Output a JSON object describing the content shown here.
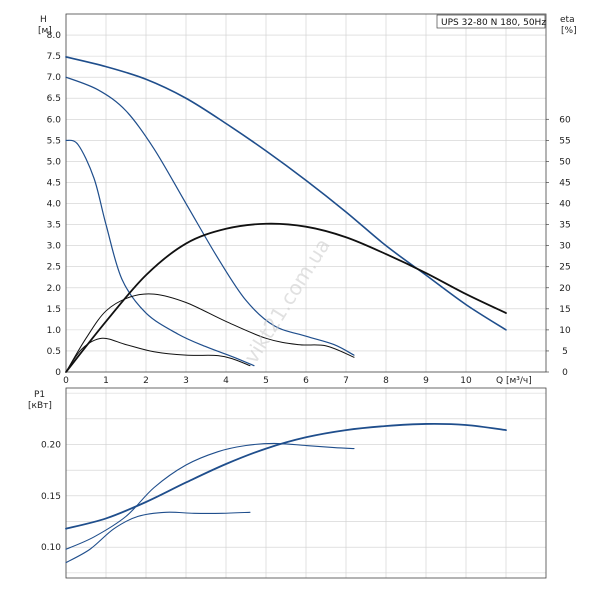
{
  "model_label": "UPS 32-80 N 180, 50Hz",
  "watermark": "vikt21.com.ua",
  "colors": {
    "blue": "#1f4e8c",
    "black": "#111111",
    "grid": "#cfcfcf",
    "frame": "#444444"
  },
  "chart_data": [
    {
      "type": "line",
      "id": "head-efficiency",
      "xlabel": "Q [м³/ч]",
      "ylabel_left": "H",
      "ylabel_left_unit": "[м]",
      "ylabel_right": "eta",
      "ylabel_right_unit": "[%]",
      "xlim": [
        0,
        12
      ],
      "ylim_left": [
        0,
        8.5
      ],
      "ylim_right": [
        0,
        85
      ],
      "grid": true,
      "x_ticks": [
        "0",
        "1",
        "2",
        "3",
        "4",
        "5",
        "6",
        "7",
        "8",
        "9",
        "10"
      ],
      "x_tick_values": [
        0,
        1,
        2,
        3,
        4,
        5,
        6,
        7,
        8,
        9,
        10
      ],
      "y_left_ticks": [
        "0",
        "0.5",
        "1.0",
        "1.5",
        "2.0",
        "2.5",
        "3.0",
        "3.5",
        "4.0",
        "4.5",
        "5.0",
        "5.5",
        "6.0",
        "6.5",
        "7.0",
        "7.5",
        "8.0"
      ],
      "y_left_tick_values": [
        0,
        0.5,
        1,
        1.5,
        2,
        2.5,
        3,
        3.5,
        4,
        4.5,
        5,
        5.5,
        6,
        6.5,
        7,
        7.5,
        8
      ],
      "y_right_ticks": [
        "0",
        "5",
        "10",
        "15",
        "20",
        "25",
        "30",
        "35",
        "40",
        "45",
        "50",
        "55",
        "60"
      ],
      "y_right_tick_values": [
        0,
        5,
        10,
        15,
        20,
        25,
        30,
        35,
        40,
        45,
        50,
        55,
        60
      ],
      "series": [
        {
          "kind": "head",
          "color": "blue",
          "width": 1.6,
          "points": [
            [
              0,
              7.48
            ],
            [
              1,
              7.25
            ],
            [
              2,
              6.95
            ],
            [
              3,
              6.5
            ],
            [
              4,
              5.9
            ],
            [
              5,
              5.25
            ],
            [
              6,
              4.55
            ],
            [
              7,
              3.8
            ],
            [
              8,
              3.0
            ],
            [
              9,
              2.3
            ],
            [
              10,
              1.6
            ],
            [
              11,
              1.0
            ]
          ]
        },
        {
          "kind": "head",
          "color": "blue",
          "width": 1.2,
          "points": [
            [
              0,
              7.0
            ],
            [
              0.8,
              6.7
            ],
            [
              1.5,
              6.2
            ],
            [
              2.2,
              5.3
            ],
            [
              3,
              4.0
            ],
            [
              3.8,
              2.7
            ],
            [
              4.5,
              1.7
            ],
            [
              5.2,
              1.1
            ],
            [
              6,
              0.85
            ],
            [
              6.7,
              0.65
            ],
            [
              7.2,
              0.4
            ]
          ]
        },
        {
          "kind": "head",
          "color": "blue",
          "width": 1.2,
          "points": [
            [
              0,
              5.5
            ],
            [
              0.3,
              5.4
            ],
            [
              0.7,
              4.6
            ],
            [
              1,
              3.5
            ],
            [
              1.4,
              2.2
            ],
            [
              2,
              1.4
            ],
            [
              2.8,
              0.9
            ],
            [
              3.5,
              0.6
            ],
            [
              4.2,
              0.35
            ],
            [
              4.7,
              0.15
            ]
          ]
        },
        {
          "kind": "efficiency",
          "color": "black",
          "width": 1.8,
          "points": [
            [
              0,
              0
            ],
            [
              1,
              12
            ],
            [
              2,
              23
            ],
            [
              3,
              30.5
            ],
            [
              4,
              34
            ],
            [
              5,
              35.2
            ],
            [
              6,
              34.5
            ],
            [
              7,
              32
            ],
            [
              8,
              28
            ],
            [
              9,
              23.5
            ],
            [
              10,
              18.5
            ],
            [
              11,
              14
            ]
          ]
        },
        {
          "kind": "efficiency",
          "color": "black",
          "width": 1.0,
          "points": [
            [
              0,
              0
            ],
            [
              0.5,
              8
            ],
            [
              1,
              14.5
            ],
            [
              1.6,
              17.8
            ],
            [
              2.2,
              18.5
            ],
            [
              3,
              16.5
            ],
            [
              4,
              12
            ],
            [
              5,
              8
            ],
            [
              5.8,
              6.5
            ],
            [
              6.5,
              6.2
            ],
            [
              7.2,
              3.5
            ]
          ]
        },
        {
          "kind": "efficiency",
          "color": "black",
          "width": 1.0,
          "points": [
            [
              0,
              0
            ],
            [
              0.4,
              5.5
            ],
            [
              0.9,
              8
            ],
            [
              1.5,
              6.5
            ],
            [
              2.2,
              4.8
            ],
            [
              3,
              4
            ],
            [
              3.8,
              3.9
            ],
            [
              4.2,
              3
            ],
            [
              4.6,
              1.5
            ]
          ]
        }
      ]
    },
    {
      "type": "line",
      "id": "power",
      "ylabel": "P1",
      "ylabel_unit": "[кВт]",
      "xlim": [
        0,
        12
      ],
      "ylim": [
        0.07,
        0.255
      ],
      "grid": true,
      "y_ticks": [
        "0.10",
        "0.15",
        "0.20"
      ],
      "y_tick_values": [
        0.1,
        0.15,
        0.2
      ],
      "series": [
        {
          "kind": "power",
          "color": "blue",
          "width": 1.8,
          "points": [
            [
              0,
              0.118
            ],
            [
              1,
              0.128
            ],
            [
              2,
              0.144
            ],
            [
              3,
              0.163
            ],
            [
              4,
              0.181
            ],
            [
              5,
              0.196
            ],
            [
              6,
              0.207
            ],
            [
              7,
              0.214
            ],
            [
              8,
              0.218
            ],
            [
              9,
              0.22
            ],
            [
              10,
              0.219
            ],
            [
              11,
              0.214
            ]
          ]
        },
        {
          "kind": "power",
          "color": "blue",
          "width": 1.1,
          "points": [
            [
              0,
              0.098
            ],
            [
              0.7,
              0.11
            ],
            [
              1.5,
              0.13
            ],
            [
              2.2,
              0.158
            ],
            [
              3,
              0.18
            ],
            [
              3.8,
              0.193
            ],
            [
              4.5,
              0.199
            ],
            [
              5.2,
              0.201
            ],
            [
              6,
              0.199
            ],
            [
              6.7,
              0.197
            ],
            [
              7.2,
              0.196
            ]
          ]
        },
        {
          "kind": "power",
          "color": "blue",
          "width": 1.1,
          "points": [
            [
              0,
              0.085
            ],
            [
              0.6,
              0.098
            ],
            [
              1.2,
              0.118
            ],
            [
              1.8,
              0.13
            ],
            [
              2.5,
              0.134
            ],
            [
              3.2,
              0.133
            ],
            [
              3.9,
              0.133
            ],
            [
              4.6,
              0.134
            ]
          ]
        }
      ]
    }
  ]
}
